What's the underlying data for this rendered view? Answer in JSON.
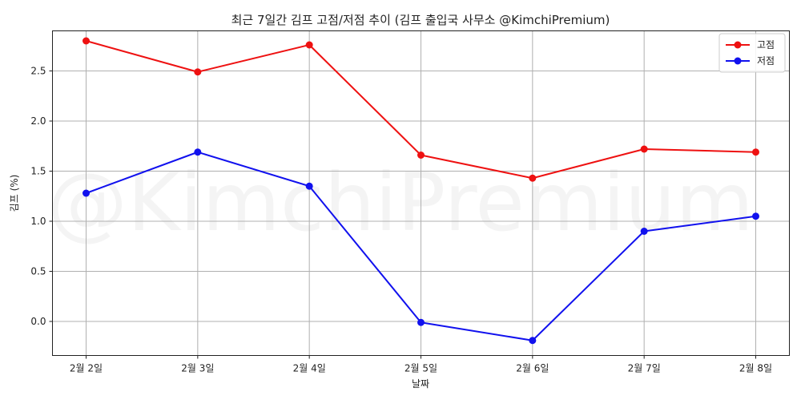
{
  "chart_data": {
    "type": "line",
    "title": "최근 7일간 김프 고점/저점 추이 (김프 출입국 사무소 @KimchiPremium)",
    "xlabel": "날짜",
    "ylabel": "김프 (%)",
    "categories": [
      "2월 2일",
      "2월 3일",
      "2월 4일",
      "2월 5일",
      "2월 6일",
      "2월 7일",
      "2월 8일"
    ],
    "series": [
      {
        "name": "고점",
        "color": "#ee1111",
        "values": [
          2.8,
          2.49,
          2.76,
          1.66,
          1.43,
          1.72,
          1.69
        ]
      },
      {
        "name": "저점",
        "color": "#1111ee",
        "values": [
          1.28,
          1.69,
          1.35,
          -0.01,
          -0.19,
          0.9,
          1.05
        ]
      }
    ],
    "yticks": [
      0.0,
      0.5,
      1.0,
      1.5,
      2.0,
      2.5
    ],
    "ytick_labels": [
      "0.0",
      "0.5",
      "1.0",
      "1.5",
      "2.0",
      "2.5"
    ],
    "ylim": [
      -0.34,
      2.9
    ],
    "grid": true,
    "legend_position": "top-right",
    "marker": "circle",
    "watermark": "@KimchiPremium"
  }
}
